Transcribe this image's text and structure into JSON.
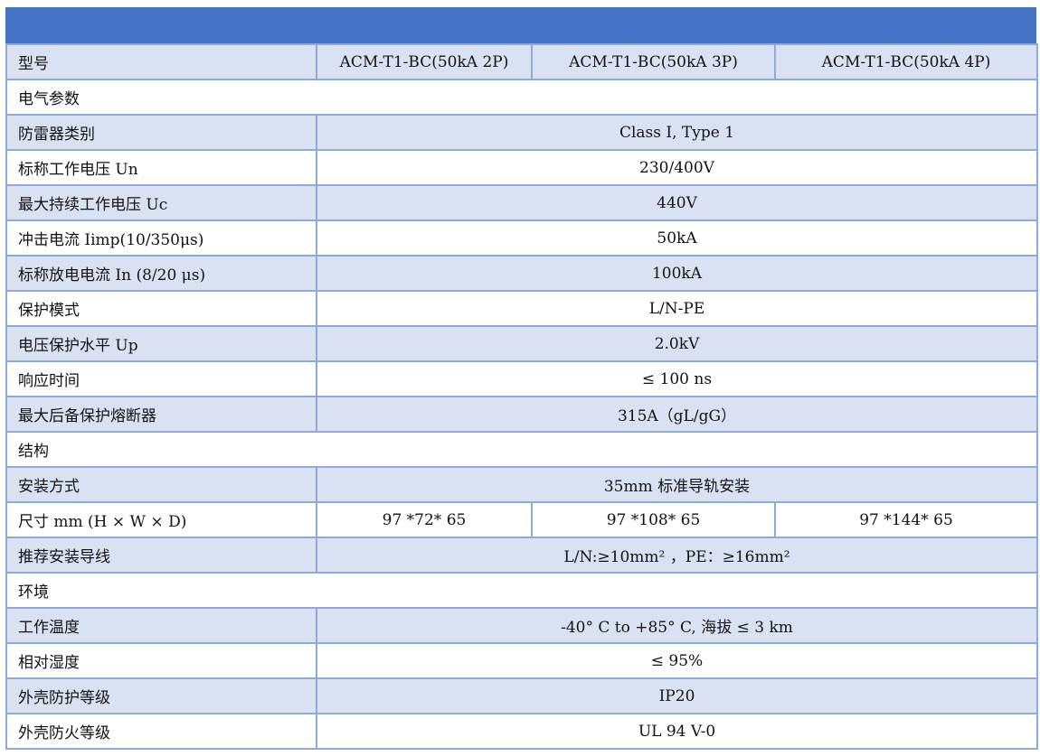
{
  "header_color": "#4472c4",
  "shade_color": "#d9e2f3",
  "border_color": "#8eaadb",
  "rows": [
    {
      "type": "split",
      "label": "型号",
      "values": [
        "ACM-T1-BC(50kA 2P)",
        "ACM-T1-BC(50kA 3P)",
        "ACM-T1-BC(50kA 4P)"
      ]
    },
    {
      "type": "section",
      "label": "电气参数"
    },
    {
      "type": "merged",
      "label": "防雷器类别",
      "value": "Class I, Type 1"
    },
    {
      "type": "merged",
      "label": "标称工作电压 Un",
      "value": "230/400V"
    },
    {
      "type": "merged",
      "label": "最大持续工作电压 Uc",
      "value": "440V"
    },
    {
      "type": "merged",
      "label": "冲击电流 Iimp(10/350μs)",
      "value": "50kA"
    },
    {
      "type": "merged",
      "label": "标称放电电流 In (8/20 μs)",
      "value": "100kA"
    },
    {
      "type": "merged",
      "label": "保护模式",
      "value": "L/N-PE"
    },
    {
      "type": "merged",
      "label": "电压保护水平 Up",
      "value": "2.0kV"
    },
    {
      "type": "merged",
      "label": "响应时间",
      "value": "≤ 100 ns"
    },
    {
      "type": "merged",
      "label": "最大后备保护熔断器",
      "value": "315A（gL/gG）"
    },
    {
      "type": "section",
      "label": "结构"
    },
    {
      "type": "merged",
      "label": "安装方式",
      "value": "35mm 标准导轨安装"
    },
    {
      "type": "split",
      "label": "尺寸 mm (H × W × D)",
      "values": [
        "97 *72* 65",
        "97 *108* 65",
        "97 *144* 65"
      ]
    },
    {
      "type": "merged",
      "label": "推荐安装导线",
      "value": "L/N:≥10mm² ，PE：≥16mm²"
    },
    {
      "type": "section",
      "label": "环境"
    },
    {
      "type": "merged",
      "label": "工作温度",
      "value": "-40° C to +85° C, 海拔 ≤ 3 km"
    },
    {
      "type": "merged",
      "label": "相对湿度",
      "value": "≤ 95%"
    },
    {
      "type": "merged",
      "label": "外壳防护等级",
      "value": "IP20"
    },
    {
      "type": "merged",
      "label": "外壳防火等级",
      "value": "UL 94 V-0"
    }
  ]
}
